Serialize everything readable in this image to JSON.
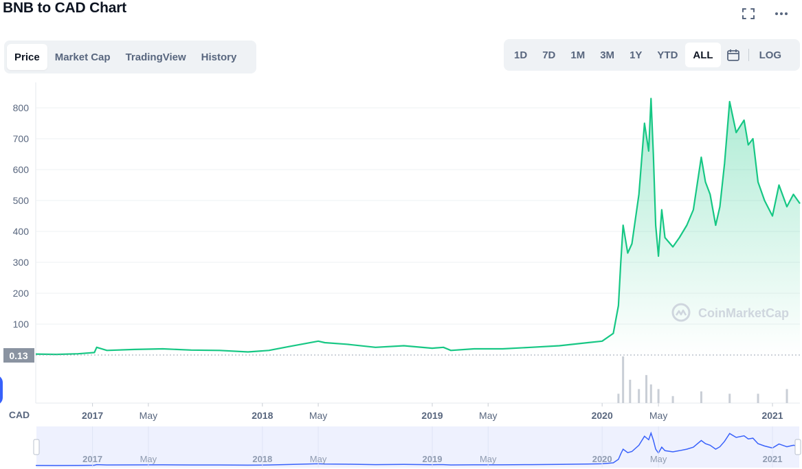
{
  "header": {
    "title": "BNB to CAD Chart"
  },
  "tabs": [
    {
      "label": "Price",
      "active": true
    },
    {
      "label": "Market Cap",
      "active": false
    },
    {
      "label": "TradingView",
      "active": false
    },
    {
      "label": "History",
      "active": false
    }
  ],
  "ranges": [
    {
      "label": "1D",
      "active": false
    },
    {
      "label": "7D",
      "active": false
    },
    {
      "label": "1M",
      "active": false
    },
    {
      "label": "3M",
      "active": false
    },
    {
      "label": "1Y",
      "active": false
    },
    {
      "label": "YTD",
      "active": false
    },
    {
      "label": "ALL",
      "active": true
    }
  ],
  "log_label": "LOG",
  "currency_label": "CAD",
  "current_price_label": "0.13",
  "watermark": "CoinMarketCap",
  "colors": {
    "line": "#16c784",
    "navigator_line": "#3861fb",
    "accent": "#3861fb"
  },
  "icons": {
    "fullscreen": "fullscreen-icon",
    "more": "more-icon",
    "calendar": "calendar-icon"
  },
  "chart_data": {
    "type": "area",
    "title": "BNB to CAD Chart",
    "ylabel": "",
    "xlabel": "",
    "ylim": [
      0,
      880
    ],
    "y_ticks": [
      100,
      200,
      300,
      400,
      500,
      600,
      700,
      800
    ],
    "x_ticks": [
      "2017",
      "May",
      "2018",
      "May",
      "2019",
      "May",
      "2020",
      "May",
      "2021"
    ],
    "x_tick_dates": [
      "2017-01-01",
      "2017-05-01",
      "2018-01-01",
      "2018-05-01",
      "2019-01-01",
      "2019-05-01",
      "2020-01-01",
      "2020-05-01",
      "2021-01-01"
    ],
    "grid": true,
    "series": [
      {
        "x": [
          "2016-09-01",
          "2016-10-15",
          "2016-12-01",
          "2017-01-05",
          "2017-01-10",
          "2017-02-01",
          "2017-04-01",
          "2017-06-01",
          "2017-08-01",
          "2017-10-01",
          "2017-12-01",
          "2018-01-15",
          "2018-03-01",
          "2018-05-01",
          "2018-05-15",
          "2018-07-01",
          "2018-09-01",
          "2018-11-01",
          "2019-01-01",
          "2019-01-25",
          "2019-02-10",
          "2019-04-01",
          "2019-06-01",
          "2019-08-01",
          "2019-10-01",
          "2019-12-01",
          "2020-01-01",
          "2020-01-25",
          "2020-02-05",
          "2020-02-10",
          "2020-02-15",
          "2020-02-25",
          "2020-03-05",
          "2020-03-20",
          "2020-04-01",
          "2020-04-10",
          "2020-04-15",
          "2020-04-20",
          "2020-04-25",
          "2020-05-01",
          "2020-05-08",
          "2020-05-15",
          "2020-06-01",
          "2020-06-15",
          "2020-07-01",
          "2020-07-15",
          "2020-08-01",
          "2020-08-10",
          "2020-08-20",
          "2020-09-01",
          "2020-09-10",
          "2020-09-20",
          "2020-10-01",
          "2020-10-15",
          "2020-11-01",
          "2020-11-10",
          "2020-11-20",
          "2020-12-01",
          "2020-12-15",
          "2021-01-01",
          "2021-01-15",
          "2021-02-01",
          "2021-02-15",
          "2021-03-01"
        ],
        "y": [
          3,
          2,
          4,
          8,
          25,
          15,
          18,
          20,
          16,
          15,
          10,
          15,
          28,
          45,
          40,
          35,
          25,
          30,
          22,
          25,
          15,
          20,
          20,
          25,
          30,
          40,
          45,
          70,
          160,
          300,
          420,
          330,
          360,
          520,
          750,
          660,
          830,
          650,
          420,
          320,
          470,
          380,
          350,
          380,
          420,
          470,
          640,
          560,
          520,
          420,
          480,
          620,
          820,
          720,
          760,
          680,
          700,
          560,
          500,
          450,
          550,
          480,
          520,
          490
        ]
      }
    ],
    "volume": {
      "x": [
        "2020-02-05",
        "2020-02-15",
        "2020-03-01",
        "2020-03-20",
        "2020-04-05",
        "2020-04-15",
        "2020-05-01",
        "2020-06-01",
        "2020-08-01",
        "2020-10-01",
        "2020-12-01",
        "2021-02-01"
      ],
      "values": [
        0.2,
        1.0,
        0.5,
        0.3,
        0.6,
        0.4,
        0.3,
        0.15,
        0.25,
        0.2,
        0.2,
        0.3
      ]
    },
    "navigator": {
      "x_ticks": [
        "2017",
        "May",
        "2018",
        "May",
        "2019",
        "May",
        "2020",
        "May",
        "2021"
      ]
    }
  }
}
